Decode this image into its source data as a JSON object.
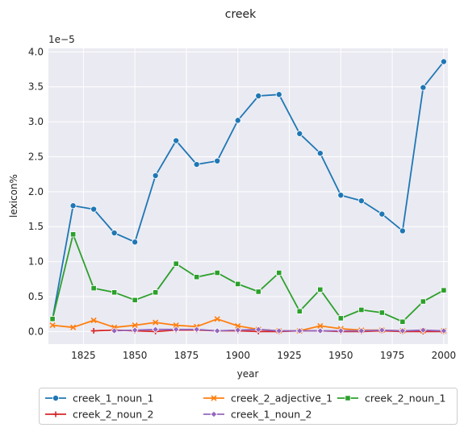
{
  "chart_data": {
    "type": "line",
    "title": "creek",
    "xlabel": "year",
    "ylabel": "lexicon%",
    "offset_label": "1e−5",
    "xlim": [
      1808,
      2002
    ],
    "ylim": [
      -0.18,
      4.05
    ],
    "x_ticks": [
      1825,
      1850,
      1875,
      1900,
      1925,
      1950,
      1975,
      2000
    ],
    "y_ticks": [
      0.0,
      0.5,
      1.0,
      1.5,
      2.0,
      2.5,
      3.0,
      3.5,
      4.0
    ],
    "y_tick_labels": [
      "0.0",
      "0.5",
      "1.0",
      "1.5",
      "2.0",
      "2.5",
      "3.0",
      "3.5",
      "4.0"
    ],
    "grid": true,
    "legend_position": "bottom-center",
    "series": [
      {
        "name": "creek_1_noun_1",
        "color": "#1f77b4",
        "marker": "circle",
        "x": [
          1810,
          1820,
          1830,
          1840,
          1850,
          1860,
          1870,
          1880,
          1890,
          1900,
          1910,
          1920,
          1930,
          1940,
          1950,
          1960,
          1970,
          1980,
          1990,
          2000
        ],
        "y": [
          0.18,
          1.8,
          1.75,
          1.41,
          1.28,
          2.23,
          2.73,
          2.39,
          2.44,
          3.02,
          3.37,
          3.39,
          2.83,
          2.55,
          1.95,
          1.87,
          1.68,
          1.44,
          3.49,
          3.86
        ]
      },
      {
        "name": "creek_2_adjective_1",
        "color": "#ff7f0e",
        "marker": "x",
        "x": [
          1810,
          1820,
          1830,
          1840,
          1850,
          1860,
          1870,
          1880,
          1890,
          1900,
          1910,
          1920,
          1930,
          1940,
          1950,
          1960,
          1970,
          1980,
          1990,
          2000
        ],
        "y": [
          0.09,
          0.06,
          0.16,
          0.06,
          0.09,
          0.13,
          0.09,
          0.07,
          0.18,
          0.08,
          0.03,
          0.01,
          0.01,
          0.08,
          0.04,
          0.02,
          0.02,
          0.01,
          0.01,
          0.01
        ]
      },
      {
        "name": "creek_2_noun_1",
        "color": "#2ca02c",
        "marker": "square",
        "x": [
          1810,
          1820,
          1830,
          1840,
          1850,
          1860,
          1870,
          1880,
          1890,
          1900,
          1910,
          1920,
          1930,
          1940,
          1950,
          1960,
          1970,
          1980,
          1990,
          2000
        ],
        "y": [
          0.18,
          1.39,
          0.62,
          0.56,
          0.45,
          0.56,
          0.97,
          0.78,
          0.84,
          0.68,
          0.57,
          0.84,
          0.29,
          0.6,
          0.19,
          0.31,
          0.27,
          0.14,
          0.43,
          0.59
        ]
      },
      {
        "name": "creek_2_noun_2",
        "color": "#d62728",
        "marker": "plus",
        "x": [
          1830,
          1840,
          1850,
          1860,
          1870,
          1880,
          1890,
          1900,
          1910,
          1920,
          1930,
          1940,
          1950,
          1960,
          1970,
          1980,
          1990,
          2000
        ],
        "y": [
          0.01,
          0.02,
          0.01,
          0.0,
          0.02,
          0.02,
          0.01,
          0.01,
          0.0,
          0.0,
          0.01,
          0.01,
          0.0,
          0.0,
          0.01,
          0.0,
          0.0,
          0.0
        ]
      },
      {
        "name": "creek_1_noun_2",
        "color": "#9467bd",
        "marker": "diamond",
        "x": [
          1840,
          1850,
          1860,
          1870,
          1880,
          1890,
          1900,
          1910,
          1920,
          1930,
          1940,
          1950,
          1960,
          1970,
          1980,
          1990,
          2000
        ],
        "y": [
          0.01,
          0.02,
          0.03,
          0.03,
          0.03,
          0.01,
          0.02,
          0.03,
          0.01,
          0.01,
          0.01,
          0.01,
          0.01,
          0.02,
          0.01,
          0.02,
          0.01
        ]
      }
    ]
  }
}
